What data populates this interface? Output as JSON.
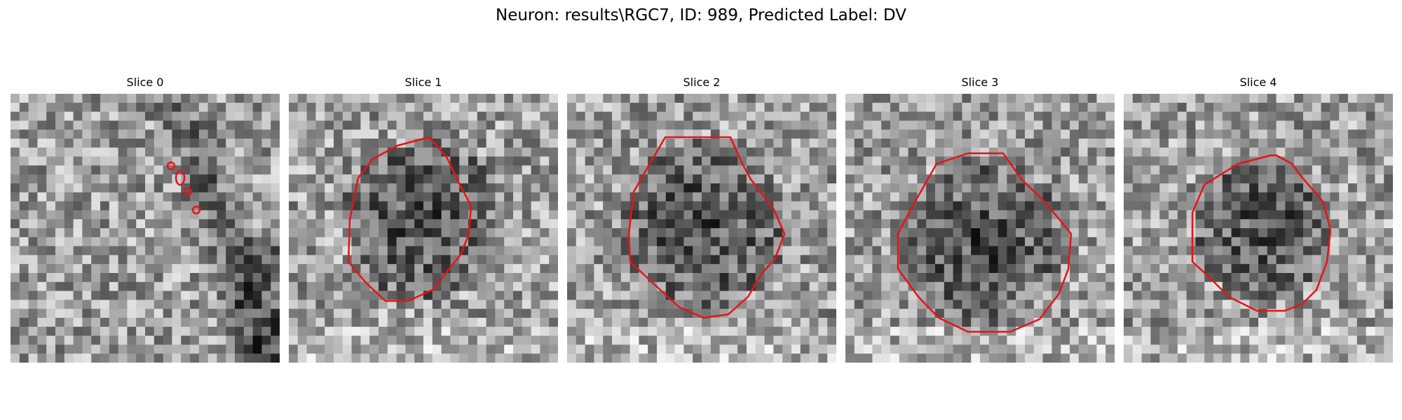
{
  "figure": {
    "title": "Neuron: results\\RGC7, ID: 989, Predicted Label: DV"
  },
  "panels": [
    {
      "title": "Slice 0",
      "grid_size": 30,
      "cell_tone": "grayscale microscopy noise, mostly light with darker diagonal band on right side",
      "roi_color": "#e8121a",
      "roi_description": "several tiny red contours along a diagonal near the upper-right center"
    },
    {
      "title": "Slice 1",
      "grid_size": 30,
      "cell_tone": "dark cell body centered, lighter surroundings",
      "roi_color": "#e8121a",
      "roi_description": "large red polygon outlining the dark cell body"
    },
    {
      "title": "Slice 2",
      "grid_size": 30,
      "cell_tone": "dark cell body centered, lighter surroundings",
      "roi_color": "#e8121a",
      "roi_description": "large red polygon outlining the dark cell body"
    },
    {
      "title": "Slice 3",
      "grid_size": 30,
      "cell_tone": "dark cell body centered, lighter surroundings",
      "roi_color": "#e8121a",
      "roi_description": "large red polygon outlining the dark cell body"
    },
    {
      "title": "Slice 4",
      "grid_size": 30,
      "cell_tone": "dark cell body centered, lighter surroundings",
      "roi_color": "#e8121a",
      "roi_description": "red polygon outlining a slightly smaller dark cell body"
    }
  ]
}
